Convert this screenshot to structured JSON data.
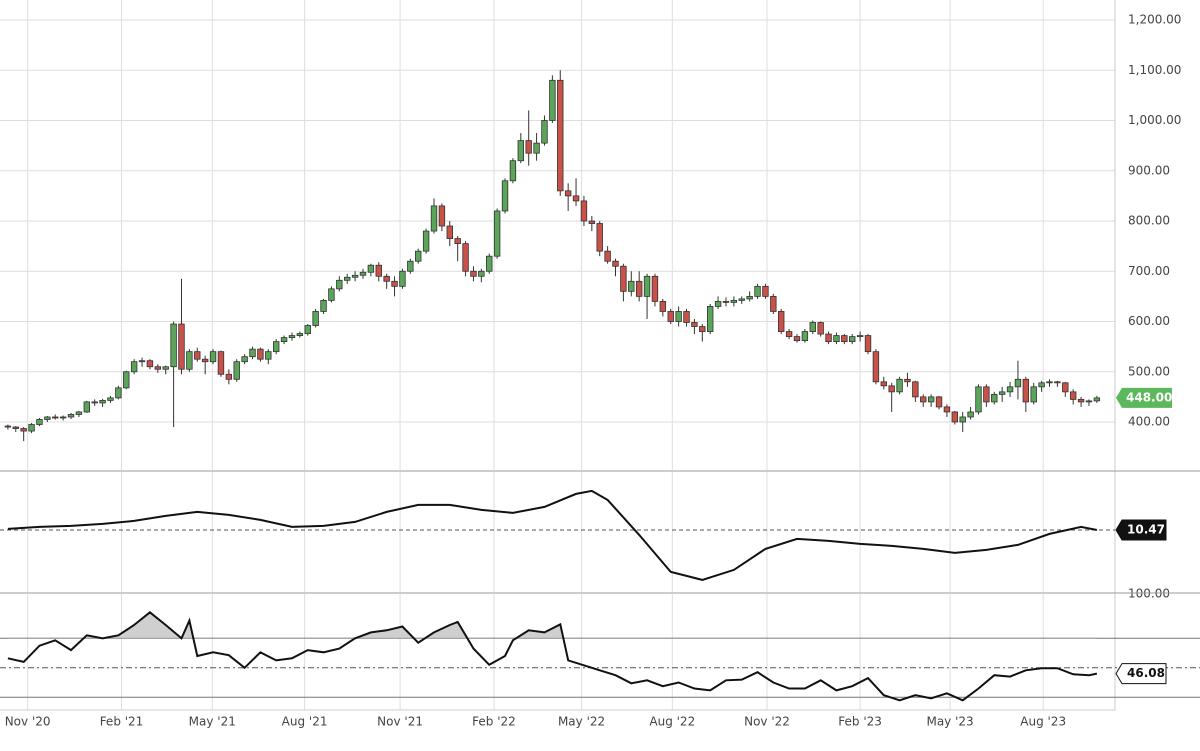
{
  "chart_data": [
    {
      "type": "candlestick",
      "colors": {
        "up": "#5aa55a",
        "down": "#c8524a",
        "outline": "#333333",
        "last": "#5cb85c"
      },
      "grid": true,
      "ylim": [
        304.5,
        1239.8
      ],
      "yticks": [
        {
          "value": 400,
          "label": "400.00"
        },
        {
          "value": 500,
          "label": "500.00"
        },
        {
          "value": 600,
          "label": "600.00"
        },
        {
          "value": 700,
          "label": "700.00"
        },
        {
          "value": 800,
          "label": "800.00"
        },
        {
          "value": 900,
          "label": "900.00"
        },
        {
          "value": 1000,
          "label": "1,000.00"
        },
        {
          "value": 1100,
          "label": "1,100.00"
        },
        {
          "value": 1200,
          "label": "1,200.00"
        }
      ],
      "xlim": [
        -1,
        140.3
      ],
      "xticks": [
        {
          "value": 2.5,
          "label": "Nov '20"
        },
        {
          "value": 14.4,
          "label": "Feb '21"
        },
        {
          "value": 25.9,
          "label": "May '21"
        },
        {
          "value": 37.6,
          "label": "Aug '21"
        },
        {
          "value": 49.7,
          "label": "Nov '21"
        },
        {
          "value": 61.6,
          "label": "Feb '22"
        },
        {
          "value": 72.7,
          "label": "May '22"
        },
        {
          "value": 84.2,
          "label": "Aug '22"
        },
        {
          "value": 96.2,
          "label": "Nov '22"
        },
        {
          "value": 108,
          "label": "Feb '23"
        },
        {
          "value": 119.4,
          "label": "May '23"
        },
        {
          "value": 131.2,
          "label": "Aug '23"
        }
      ],
      "last_label": "448.00",
      "ohlc": [
        [
          392,
          395,
          385,
          390
        ],
        [
          390,
          392,
          380,
          387
        ],
        [
          387,
          390,
          362,
          382
        ],
        [
          382,
          398,
          378,
          395
        ],
        [
          395,
          408,
          392,
          405
        ],
        [
          405,
          412,
          400,
          410
        ],
        [
          410,
          415,
          405,
          408
        ],
        [
          408,
          413,
          403,
          410
        ],
        [
          410,
          418,
          406,
          415
        ],
        [
          415,
          422,
          410,
          420
        ],
        [
          420,
          442,
          418,
          440
        ],
        [
          440,
          445,
          432,
          438
        ],
        [
          438,
          446,
          430,
          443
        ],
        [
          443,
          452,
          438,
          448
        ],
        [
          448,
          472,
          445,
          468
        ],
        [
          468,
          502,
          465,
          500
        ],
        [
          500,
          525,
          495,
          520
        ],
        [
          520,
          528,
          510,
          522
        ],
        [
          522,
          525,
          505,
          510
        ],
        [
          510,
          515,
          498,
          505
        ],
        [
          505,
          512,
          495,
          510
        ],
        [
          510,
          600,
          390,
          595
        ],
        [
          595,
          685,
          495,
          505
        ],
        [
          505,
          545,
          500,
          540
        ],
        [
          540,
          548,
          520,
          525
        ],
        [
          525,
          532,
          495,
          520
        ],
        [
          520,
          545,
          515,
          540
        ],
        [
          540,
          542,
          490,
          495
        ],
        [
          495,
          505,
          475,
          485
        ],
        [
          485,
          525,
          480,
          520
        ],
        [
          520,
          535,
          515,
          530
        ],
        [
          530,
          550,
          525,
          545
        ],
        [
          545,
          548,
          520,
          525
        ],
        [
          525,
          545,
          515,
          540
        ],
        [
          540,
          565,
          535,
          560
        ],
        [
          560,
          572,
          555,
          568
        ],
        [
          568,
          578,
          562,
          572
        ],
        [
          572,
          580,
          568,
          576
        ],
        [
          576,
          595,
          572,
          592
        ],
        [
          592,
          625,
          588,
          620
        ],
        [
          620,
          645,
          615,
          642
        ],
        [
          642,
          670,
          638,
          665
        ],
        [
          665,
          690,
          660,
          682
        ],
        [
          682,
          695,
          675,
          688
        ],
        [
          688,
          700,
          680,
          692
        ],
        [
          692,
          705,
          685,
          698
        ],
        [
          698,
          715,
          690,
          712
        ],
        [
          712,
          718,
          680,
          690
        ],
        [
          690,
          695,
          665,
          680
        ],
        [
          680,
          690,
          650,
          670
        ],
        [
          670,
          705,
          665,
          700
        ],
        [
          700,
          725,
          695,
          720
        ],
        [
          720,
          745,
          715,
          740
        ],
        [
          740,
          785,
          735,
          780
        ],
        [
          780,
          845,
          775,
          830
        ],
        [
          830,
          835,
          780,
          790
        ],
        [
          790,
          800,
          750,
          765
        ],
        [
          765,
          770,
          720,
          755
        ],
        [
          755,
          760,
          690,
          700
        ],
        [
          700,
          710,
          680,
          690
        ],
        [
          690,
          705,
          678,
          700
        ],
        [
          700,
          735,
          695,
          730
        ],
        [
          730,
          825,
          725,
          820
        ],
        [
          820,
          885,
          815,
          880
        ],
        [
          880,
          925,
          875,
          920
        ],
        [
          920,
          975,
          915,
          960
        ],
        [
          960,
          1020,
          910,
          935
        ],
        [
          935,
          975,
          920,
          955
        ],
        [
          955,
          1010,
          950,
          1000
        ],
        [
          1000,
          1090,
          995,
          1080
        ],
        [
          1080,
          1100,
          850,
          860
        ],
        [
          860,
          875,
          820,
          850
        ],
        [
          850,
          885,
          830,
          840
        ],
        [
          840,
          850,
          790,
          800
        ],
        [
          800,
          810,
          780,
          795
        ],
        [
          795,
          800,
          730,
          740
        ],
        [
          740,
          750,
          715,
          720
        ],
        [
          720,
          725,
          690,
          710
        ],
        [
          710,
          715,
          640,
          660
        ],
        [
          660,
          700,
          650,
          680
        ],
        [
          680,
          700,
          640,
          650
        ],
        [
          650,
          695,
          605,
          690
        ],
        [
          690,
          695,
          630,
          640
        ],
        [
          640,
          645,
          610,
          620
        ],
        [
          620,
          625,
          595,
          600
        ],
        [
          600,
          630,
          590,
          620
        ],
        [
          620,
          625,
          590,
          598
        ],
        [
          598,
          605,
          575,
          590
        ],
        [
          590,
          595,
          560,
          580
        ],
        [
          580,
          635,
          575,
          630
        ],
        [
          630,
          650,
          625,
          640
        ],
        [
          640,
          648,
          630,
          638
        ],
        [
          638,
          650,
          630,
          642
        ],
        [
          642,
          650,
          635,
          645
        ],
        [
          645,
          660,
          640,
          650
        ],
        [
          650,
          675,
          645,
          670
        ],
        [
          670,
          675,
          645,
          650
        ],
        [
          650,
          655,
          615,
          620
        ],
        [
          620,
          625,
          575,
          580
        ],
        [
          580,
          585,
          565,
          570
        ],
        [
          570,
          575,
          558,
          562
        ],
        [
          562,
          585,
          558,
          580
        ],
        [
          580,
          602,
          575,
          598
        ],
        [
          598,
          600,
          570,
          575
        ],
        [
          575,
          580,
          555,
          560
        ],
        [
          560,
          578,
          555,
          572
        ],
        [
          572,
          575,
          555,
          560
        ],
        [
          560,
          575,
          555,
          570
        ],
        [
          570,
          580,
          560,
          572
        ],
        [
          572,
          575,
          535,
          540
        ],
        [
          540,
          545,
          475,
          480
        ],
        [
          480,
          490,
          465,
          472
        ],
        [
          472,
          478,
          420,
          460
        ],
        [
          460,
          490,
          455,
          485
        ],
        [
          485,
          498,
          470,
          480
        ],
        [
          480,
          482,
          440,
          450
        ],
        [
          450,
          455,
          430,
          440
        ],
        [
          440,
          455,
          430,
          450
        ],
        [
          450,
          452,
          425,
          430
        ],
        [
          430,
          435,
          410,
          420
        ],
        [
          420,
          422,
          395,
          400
        ],
        [
          400,
          420,
          380,
          410
        ],
        [
          410,
          430,
          405,
          420
        ],
        [
          420,
          475,
          415,
          470
        ],
        [
          470,
          475,
          430,
          440
        ],
        [
          440,
          460,
          435,
          455
        ],
        [
          455,
          470,
          440,
          460
        ],
        [
          460,
          480,
          450,
          470
        ],
        [
          470,
          522,
          445,
          485
        ],
        [
          485,
          490,
          420,
          440
        ],
        [
          440,
          478,
          435,
          470
        ],
        [
          470,
          482,
          460,
          478
        ],
        [
          478,
          485,
          470,
          480
        ],
        [
          480,
          482,
          470,
          478
        ],
        [
          478,
          480,
          450,
          460
        ],
        [
          460,
          465,
          435,
          445
        ],
        [
          445,
          450,
          430,
          440
        ],
        [
          440,
          445,
          432,
          442
        ],
        [
          442,
          452,
          438,
          448
        ]
      ]
    },
    {
      "type": "line",
      "color": "#111111",
      "last_line": "dashed",
      "ylim": [
        -20.53,
        39.47
      ],
      "x": [
        0,
        4,
        8,
        12,
        16,
        20,
        24,
        28,
        32,
        36,
        40,
        44,
        48,
        52,
        56,
        60,
        64,
        68,
        72,
        74,
        76,
        80,
        84,
        88,
        92,
        96,
        100,
        104,
        108,
        112,
        116,
        120,
        124,
        128,
        132,
        136,
        138
      ],
      "values": [
        11,
        12,
        12.5,
        13.5,
        15,
        17.5,
        19.5,
        18,
        15.5,
        12,
        12.5,
        14.5,
        19.5,
        23,
        23,
        20.5,
        19,
        22,
        28.5,
        30,
        25.5,
        8,
        -10.5,
        -14.5,
        -9.5,
        1,
        6,
        5,
        3.5,
        2.5,
        1,
        -1,
        0.5,
        3,
        8.5,
        12,
        10.47
      ]
    },
    {
      "type": "line",
      "color": "#111111",
      "area_color": "#cfcfcf",
      "ylim": [
        21.4,
        100
      ],
      "yticks": [
        {
          "value": 100,
          "label": "100.00"
        }
      ],
      "bands": [
        30,
        70
      ],
      "midline": 50,
      "x": [
        0,
        2,
        4,
        6,
        8,
        10,
        12,
        14,
        16,
        18,
        20,
        22,
        23,
        24,
        26,
        28,
        30,
        32,
        34,
        36,
        38,
        40,
        42,
        44,
        46,
        48,
        50,
        52,
        54,
        56,
        57,
        59,
        61,
        63,
        64,
        66,
        68,
        70,
        71,
        73,
        75,
        77,
        79,
        81,
        83,
        85,
        87,
        89,
        91,
        93,
        95,
        97,
        99,
        101,
        103,
        105,
        107,
        109,
        111,
        113,
        115,
        117,
        119,
        121,
        123,
        125,
        127,
        129,
        131,
        133,
        135,
        137,
        138
      ],
      "values": [
        56.4,
        54,
        65,
        68.6,
        62,
        72,
        70,
        72,
        79,
        87.6,
        79,
        70,
        82,
        58,
        60.5,
        58.5,
        50,
        60.5,
        55,
        56.4,
        62,
        60.5,
        63,
        70,
        74,
        75.4,
        78,
        67,
        74,
        79,
        81,
        63,
        52,
        58,
        68.6,
        75.4,
        74,
        79.5,
        55,
        51.7,
        48.3,
        45,
        39.5,
        41.5,
        37.5,
        40,
        36,
        34.7,
        41.5,
        42,
        47,
        40,
        36,
        36,
        41.5,
        34.7,
        37.5,
        43,
        31.4,
        28,
        31.4,
        29.3,
        32.7,
        28,
        36,
        45,
        44,
        48.3,
        49.7,
        49.7,
        45.6,
        45,
        46.08
      ]
    }
  ]
}
